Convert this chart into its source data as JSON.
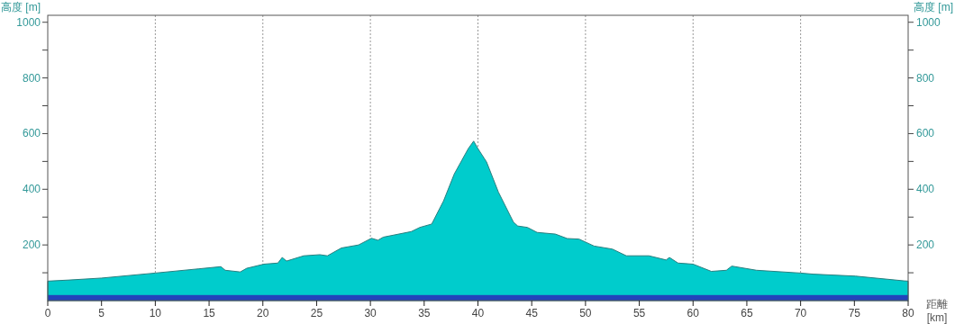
{
  "chart_data": {
    "type": "area",
    "xlabel": "距離 [km]",
    "ylabel": "高度 [m]",
    "y2label": "高度 [m]",
    "xlim": [
      0,
      80
    ],
    "ylim": [
      0,
      1025
    ],
    "y2lim": [
      0,
      1025
    ],
    "xticks": [
      0,
      5,
      10,
      15,
      20,
      25,
      30,
      35,
      40,
      45,
      50,
      55,
      60,
      65,
      70,
      75,
      80
    ],
    "yticks": [
      {
        "value": 100,
        "label": null
      },
      200,
      {
        "value": 300,
        "label": null
      },
      400,
      {
        "value": 500,
        "label": null
      },
      600,
      {
        "value": 700,
        "label": null
      },
      800,
      {
        "value": 900,
        "label": null
      },
      1000
    ],
    "y2ticks": [
      {
        "value": 100,
        "label": null
      },
      200,
      {
        "value": 300,
        "label": null
      },
      400,
      {
        "value": 500,
        "label": null
      },
      600,
      {
        "value": 700,
        "label": null
      },
      800,
      {
        "value": 900,
        "label": null
      },
      1000
    ],
    "x": [
      0,
      2,
      5,
      10,
      14,
      16.1,
      16.5,
      17.9,
      18.5,
      20.1,
      21.4,
      21.8,
      22.2,
      23.8,
      25.3,
      26,
      27.3,
      28.9,
      30.1,
      30.7,
      31.2,
      33.8,
      34.6,
      35.7,
      36.8,
      37.8,
      39.1,
      39.6,
      40,
      40.8,
      41.9,
      43.3,
      43.7,
      44.6,
      45.5,
      47.2,
      48.3,
      49.4,
      50.8,
      52.5,
      53.8,
      55.9,
      57.5,
      57.8,
      58.6,
      60,
      61.7,
      63.1,
      63.6,
      65.9,
      70,
      71.2,
      75.1,
      79.6,
      80
    ],
    "series": [
      {
        "color": "#00cccc",
        "values": [
          70,
          74,
          81,
          99,
          114,
          122,
          109,
          103,
          116,
          131,
          135,
          155,
          142,
          161,
          165,
          161,
          189,
          200,
          224,
          217,
          228,
          248,
          263,
          275,
          358,
          455,
          546,
          573,
          546,
          498,
          390,
          282,
          268,
          263,
          245,
          239,
          223,
          221,
          196,
          185,
          161,
          161,
          146,
          155,
          135,
          131,
          105,
          109,
          124,
          109,
          99,
          95,
          88,
          71,
          70
        ]
      }
    ],
    "ref_lines": [
      {
        "axis": "x",
        "value": 10,
        "line_style": "dotted",
        "color": "#999999"
      },
      {
        "axis": "x",
        "value": 20,
        "line_style": "dotted",
        "color": "#999999"
      },
      {
        "axis": "x",
        "value": 30,
        "line_style": "dotted",
        "color": "#999999"
      },
      {
        "axis": "x",
        "value": 40,
        "line_style": "dotted",
        "color": "#999999"
      },
      {
        "axis": "x",
        "value": 50,
        "line_style": "dotted",
        "color": "#999999"
      },
      {
        "axis": "x",
        "value": 60,
        "line_style": "dotted",
        "color": "#999999"
      },
      {
        "axis": "x",
        "value": 70,
        "line_style": "dotted",
        "color": "#999999"
      }
    ],
    "bands": [
      {
        "axis": "y",
        "from": 0,
        "to": 20,
        "color": "#2244bb"
      }
    ]
  }
}
